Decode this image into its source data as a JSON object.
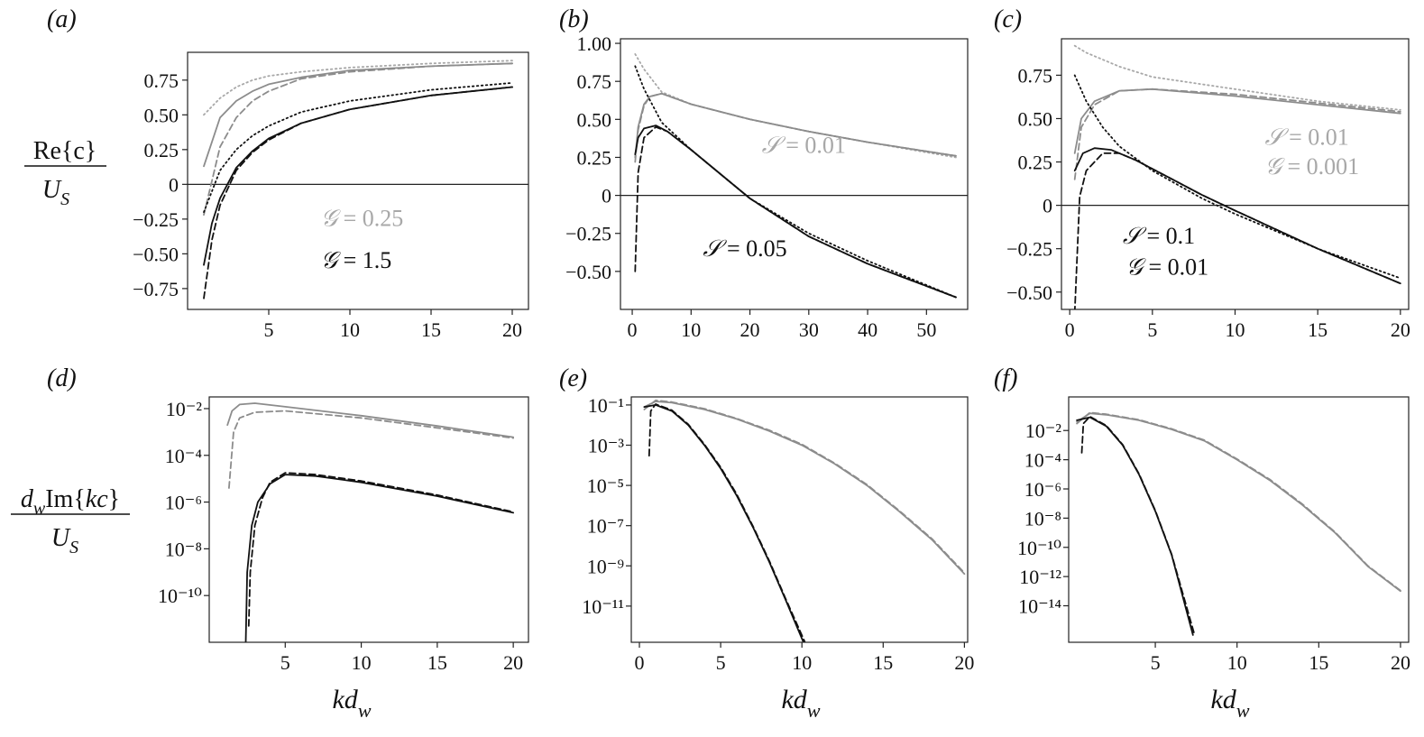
{
  "figure": {
    "row1_ylabel": {
      "num": "Re{c}",
      "den_main": "U",
      "den_sub": "S"
    },
    "row2_ylabel": {
      "num_pre": "d",
      "num_sub": "w",
      "num_main": "Im{",
      "num_kc": "kc",
      "num_close": "}",
      "den_main": "U",
      "den_sub": "S"
    },
    "xlabel": {
      "main": "kd",
      "sub": "w"
    }
  },
  "colors": {
    "black": "#111111",
    "gray": "#8c8c8c",
    "lightgray": "#a8a8a8"
  },
  "chart_data": [
    {
      "panel": "(a)",
      "type": "line",
      "yscale": "linear",
      "xlim": [
        0,
        21
      ],
      "ylim": [
        -0.9,
        0.95
      ],
      "xticks": [
        5,
        10,
        15,
        20
      ],
      "yticks": [
        0.75,
        0.5,
        0.25,
        0,
        -0.25,
        -0.5,
        -0.75
      ],
      "ytick_labels": [
        "0.75",
        "0.50",
        "0.25",
        "0",
        "−0.25",
        "−0.50",
        "−0.75"
      ],
      "zero_line": true,
      "series": [
        {
          "color": "lightgray",
          "dash": "dotted",
          "x": [
            1,
            2,
            3,
            4,
            5,
            7,
            10,
            15,
            20
          ],
          "y": [
            0.5,
            0.62,
            0.7,
            0.75,
            0.78,
            0.81,
            0.84,
            0.87,
            0.89
          ]
        },
        {
          "color": "gray",
          "dash": "solid",
          "x": [
            1,
            2,
            3,
            4,
            5,
            7,
            10,
            15,
            20
          ],
          "y": [
            0.13,
            0.48,
            0.6,
            0.67,
            0.72,
            0.77,
            0.82,
            0.85,
            0.87
          ]
        },
        {
          "color": "gray",
          "dash": "dashed",
          "x": [
            1,
            2,
            3,
            4,
            5,
            7,
            10,
            15,
            20
          ],
          "y": [
            -0.22,
            0.27,
            0.48,
            0.6,
            0.67,
            0.76,
            0.81,
            0.85,
            0.87
          ]
        },
        {
          "color": "black",
          "dash": "dotted",
          "x": [
            1,
            2,
            3,
            4,
            5,
            7,
            10,
            15,
            20
          ],
          "y": [
            -0.2,
            0.1,
            0.25,
            0.35,
            0.42,
            0.52,
            0.6,
            0.68,
            0.73
          ]
        },
        {
          "color": "black",
          "dash": "solid",
          "x": [
            1,
            1.5,
            2,
            3,
            4,
            5,
            7,
            10,
            15,
            20
          ],
          "y": [
            -0.58,
            -0.28,
            -0.1,
            0.12,
            0.24,
            0.33,
            0.44,
            0.54,
            0.64,
            0.7
          ]
        },
        {
          "color": "black",
          "dash": "dashed",
          "x": [
            1,
            1.5,
            2,
            3,
            4,
            5,
            7,
            10,
            15,
            20
          ],
          "y": [
            -0.82,
            -0.4,
            -0.15,
            0.1,
            0.23,
            0.32,
            0.44,
            0.54,
            0.64,
            0.7
          ]
        }
      ],
      "annotations": [
        {
          "text": "= 0.25",
          "script": "𝒢",
          "color": "lightgray",
          "x": 8.2,
          "y": -0.3
        },
        {
          "text": "= 1.5",
          "script": "𝒢",
          "color": "black",
          "x": 8.2,
          "y": -0.6
        }
      ]
    },
    {
      "panel": "(b)",
      "type": "line",
      "yscale": "linear",
      "xlim": [
        -2,
        57
      ],
      "ylim": [
        -0.75,
        1.03
      ],
      "xticks": [
        0,
        10,
        20,
        30,
        40,
        50
      ],
      "yticks": [
        1,
        0.75,
        0.5,
        0.25,
        0,
        -0.25,
        -0.5
      ],
      "ytick_labels": [
        "1.00",
        "0.75",
        "0.50",
        "0.25",
        "0",
        "−0.25",
        "−0.50"
      ],
      "zero_line": true,
      "series": [
        {
          "color": "lightgray",
          "dash": "dotted",
          "x": [
            0.5,
            2,
            5,
            10,
            20,
            30,
            40,
            55
          ],
          "y": [
            0.93,
            0.83,
            0.68,
            0.6,
            0.5,
            0.42,
            0.35,
            0.25
          ]
        },
        {
          "color": "gray",
          "dash": "solid",
          "x": [
            0.5,
            1,
            2,
            3,
            5,
            10,
            20,
            30,
            40,
            55
          ],
          "y": [
            0.25,
            0.45,
            0.6,
            0.65,
            0.67,
            0.6,
            0.5,
            0.42,
            0.35,
            0.26
          ]
        },
        {
          "color": "gray",
          "dash": "dashed",
          "x": [
            0.5,
            1,
            2,
            3,
            5,
            10,
            20,
            30,
            40,
            55
          ],
          "y": [
            0.22,
            0.43,
            0.59,
            0.65,
            0.67,
            0.6,
            0.5,
            0.42,
            0.35,
            0.26
          ]
        },
        {
          "color": "black",
          "dash": "dotted",
          "x": [
            0.5,
            2,
            5,
            10,
            20,
            30,
            40,
            55
          ],
          "y": [
            0.85,
            0.7,
            0.48,
            0.3,
            -0.02,
            -0.25,
            -0.43,
            -0.67
          ]
        },
        {
          "color": "black",
          "dash": "solid",
          "x": [
            0.5,
            1,
            2,
            4,
            6,
            10,
            20,
            30,
            40,
            55
          ],
          "y": [
            0.27,
            0.38,
            0.44,
            0.46,
            0.42,
            0.3,
            -0.02,
            -0.27,
            -0.45,
            -0.67
          ]
        },
        {
          "color": "black",
          "dash": "dashed",
          "x": [
            0.5,
            1,
            2,
            4,
            6,
            10,
            20,
            30,
            40,
            55
          ],
          "y": [
            -0.5,
            0.15,
            0.38,
            0.45,
            0.42,
            0.3,
            -0.02,
            -0.27,
            -0.45,
            -0.67
          ]
        }
      ],
      "annotations": [
        {
          "text": "= 0.01",
          "script": "𝒮",
          "color": "lightgray",
          "x": 22,
          "y": 0.28
        },
        {
          "text": "= 0.05",
          "script": "𝒮",
          "color": "black",
          "x": 12,
          "y": -0.4
        }
      ]
    },
    {
      "panel": "(c)",
      "type": "line",
      "yscale": "linear",
      "xlim": [
        -0.5,
        20.5
      ],
      "ylim": [
        -0.6,
        0.96
      ],
      "xticks": [
        0,
        5,
        10,
        15,
        20
      ],
      "yticks": [
        0.75,
        0.5,
        0.25,
        0,
        -0.25,
        -0.5
      ],
      "ytick_labels": [
        "0.75",
        "0.50",
        "0.25",
        "0",
        "−0.25",
        "−0.50"
      ],
      "zero_line": true,
      "series": [
        {
          "color": "lightgray",
          "dash": "dotted",
          "x": [
            0.3,
            1,
            3,
            5,
            10,
            15,
            20
          ],
          "y": [
            0.92,
            0.88,
            0.8,
            0.74,
            0.67,
            0.6,
            0.55
          ]
        },
        {
          "color": "gray",
          "dash": "solid",
          "x": [
            0.3,
            0.7,
            1.5,
            3,
            5,
            10,
            15,
            20
          ],
          "y": [
            0.3,
            0.5,
            0.6,
            0.66,
            0.67,
            0.63,
            0.58,
            0.53
          ]
        },
        {
          "color": "gray",
          "dash": "dashed",
          "x": [
            0.3,
            0.7,
            1.5,
            3,
            5,
            10,
            15,
            20
          ],
          "y": [
            0.15,
            0.45,
            0.58,
            0.66,
            0.67,
            0.64,
            0.59,
            0.54
          ]
        },
        {
          "color": "black",
          "dash": "dotted",
          "x": [
            0.3,
            1,
            2,
            3,
            5,
            8,
            10,
            15,
            20
          ],
          "y": [
            0.75,
            0.6,
            0.45,
            0.34,
            0.2,
            0.04,
            -0.05,
            -0.25,
            -0.42
          ]
        },
        {
          "color": "black",
          "dash": "solid",
          "x": [
            0.3,
            0.8,
            1.5,
            2.5,
            4,
            6,
            8,
            10,
            15,
            20
          ],
          "y": [
            0.2,
            0.3,
            0.33,
            0.32,
            0.26,
            0.16,
            0.06,
            -0.03,
            -0.25,
            -0.45
          ]
        },
        {
          "color": "black",
          "dash": "dashed",
          "x": [
            0.3,
            0.6,
            1,
            2,
            3,
            4,
            6,
            8,
            10,
            15,
            20
          ],
          "y": [
            -0.62,
            0.05,
            0.2,
            0.3,
            0.3,
            0.26,
            0.16,
            0.06,
            -0.03,
            -0.25,
            -0.45
          ]
        }
      ],
      "annotations": [
        {
          "text": "= 0.01",
          "script": "𝒮",
          "color": "lightgray",
          "x": 11.8,
          "y": 0.35
        },
        {
          "text": "= 0.001",
          "script": "𝒢",
          "color": "lightgray",
          "x": 11.8,
          "y": 0.18
        },
        {
          "text": "= 0.1",
          "script": "𝒮",
          "color": "black",
          "x": 3.2,
          "y": -0.22
        },
        {
          "text": "= 0.01",
          "script": "𝒢",
          "color": "black",
          "x": 3.4,
          "y": -0.4
        }
      ]
    },
    {
      "panel": "(d)",
      "type": "line",
      "yscale": "log",
      "xlim": [
        0,
        21
      ],
      "ylim_exp": [
        -12,
        -1.5
      ],
      "xticks": [
        5,
        10,
        15,
        20
      ],
      "yticks_exp": [
        -2,
        -4,
        -6,
        -8,
        -10
      ],
      "series": [
        {
          "color": "gray",
          "dash": "solid",
          "x": [
            1.2,
            1.5,
            2,
            3,
            5,
            10,
            15,
            20
          ],
          "y": [
            0.002,
            0.008,
            0.015,
            0.017,
            0.012,
            0.005,
            0.0018,
            0.0006
          ]
        },
        {
          "color": "gray",
          "dash": "dashed",
          "x": [
            1.3,
            1.6,
            2,
            3,
            5,
            10,
            15,
            20
          ],
          "y": [
            4e-06,
            0.001,
            0.004,
            0.007,
            0.008,
            0.004,
            0.0015,
            0.00055
          ]
        },
        {
          "color": "black",
          "dash": "solid",
          "x": [
            2.4,
            2.5,
            2.8,
            3.2,
            4,
            5,
            7,
            10,
            15,
            20
          ],
          "y": [
            1e-12,
            1e-09,
            1e-07,
            1e-06,
            6e-06,
            1.5e-05,
            1.3e-05,
            7e-06,
            1.8e-06,
            3.5e-07
          ]
        },
        {
          "color": "black",
          "dash": "dashed",
          "x": [
            2.6,
            2.7,
            3,
            3.5,
            4,
            5,
            7,
            10,
            15,
            20
          ],
          "y": [
            5e-12,
            1e-09,
            1e-07,
            1.5e-06,
            7e-06,
            1.8e-05,
            1.5e-05,
            8e-06,
            2e-06,
            3.8e-07
          ]
        }
      ]
    },
    {
      "panel": "(e)",
      "type": "line",
      "yscale": "log",
      "xlim": [
        -0.5,
        20.2
      ],
      "ylim_exp": [
        -12.8,
        -0.6
      ],
      "xticks": [
        0,
        5,
        10,
        15,
        20
      ],
      "yticks_exp": [
        -1,
        -3,
        -5,
        -7,
        -9,
        -11
      ],
      "series": [
        {
          "color": "gray",
          "dash": "solid",
          "x": [
            0.3,
            1,
            2,
            4,
            6,
            8,
            10,
            12,
            14,
            16,
            18,
            20
          ],
          "y": [
            0.08,
            0.15,
            0.13,
            0.06,
            0.02,
            0.005,
            0.001,
            0.00012,
            1e-05,
            5e-07,
            2e-08,
            4e-10
          ]
        },
        {
          "color": "gray",
          "dash": "dashed",
          "x": [
            0.3,
            1,
            2,
            4,
            6,
            8,
            10,
            12,
            14,
            16,
            18,
            20
          ],
          "y": [
            0.06,
            0.17,
            0.14,
            0.065,
            0.021,
            0.0055,
            0.0011,
            0.00013,
            1.1e-05,
            5.5e-07,
            2.2e-08,
            4.5e-10
          ]
        },
        {
          "color": "black",
          "dash": "solid",
          "x": [
            0.3,
            1,
            2,
            3,
            4,
            5,
            6,
            7,
            8,
            9,
            10.2
          ],
          "y": [
            0.08,
            0.1,
            0.05,
            0.01,
            0.001,
            7e-05,
            3e-06,
            8e-08,
            1.5e-09,
            2e-11,
            1e-13
          ]
        },
        {
          "color": "black",
          "dash": "dashed",
          "x": [
            0.6,
            0.7,
            1,
            2,
            3,
            4,
            5,
            6,
            7,
            8,
            9,
            10.3
          ],
          "y": [
            0.0003,
            0.05,
            0.11,
            0.055,
            0.011,
            0.0011,
            8e-05,
            3.5e-06,
            9e-08,
            1.7e-09,
            2.3e-11,
            1e-13
          ]
        }
      ]
    },
    {
      "panel": "(f)",
      "type": "line",
      "yscale": "log",
      "xlim": [
        -0.3,
        20.5
      ],
      "ylim_exp": [
        -16.5,
        0.3
      ],
      "xticks": [
        5,
        10,
        15,
        20
      ],
      "yticks_exp": [
        -2,
        -4,
        -6,
        -8,
        -10,
        -12,
        -14
      ],
      "series": [
        {
          "color": "gray",
          "dash": "solid",
          "x": [
            0.2,
            1,
            2,
            4,
            6,
            8,
            10,
            12,
            14,
            16,
            18,
            20
          ],
          "y": [
            0.04,
            0.15,
            0.12,
            0.05,
            0.012,
            0.002,
            0.0001,
            4e-06,
            8e-08,
            1e-09,
            5e-12,
            1e-13
          ]
        },
        {
          "color": "gray",
          "dash": "dashed",
          "x": [
            0.2,
            1,
            2,
            4,
            6,
            8,
            10,
            12,
            14,
            16,
            18,
            20
          ],
          "y": [
            0.03,
            0.17,
            0.13,
            0.055,
            0.013,
            0.0022,
            0.00011,
            4.5e-06,
            9e-08,
            1.1e-09,
            5.5e-12,
            1.1e-13
          ]
        },
        {
          "color": "black",
          "dash": "solid",
          "x": [
            0.2,
            1,
            2,
            3,
            4,
            5,
            6,
            7.3
          ],
          "y": [
            0.05,
            0.08,
            0.02,
            0.001,
            1e-05,
            3e-08,
            3e-11,
            1e-16
          ]
        },
        {
          "color": "black",
          "dash": "dashed",
          "x": [
            0.5,
            0.6,
            1,
            2,
            3,
            4,
            5,
            6,
            7.4
          ],
          "y": [
            0.0003,
            0.03,
            0.09,
            0.022,
            0.0011,
            1.1e-05,
            3.3e-08,
            3.3e-11,
            1e-16
          ]
        }
      ]
    }
  ]
}
